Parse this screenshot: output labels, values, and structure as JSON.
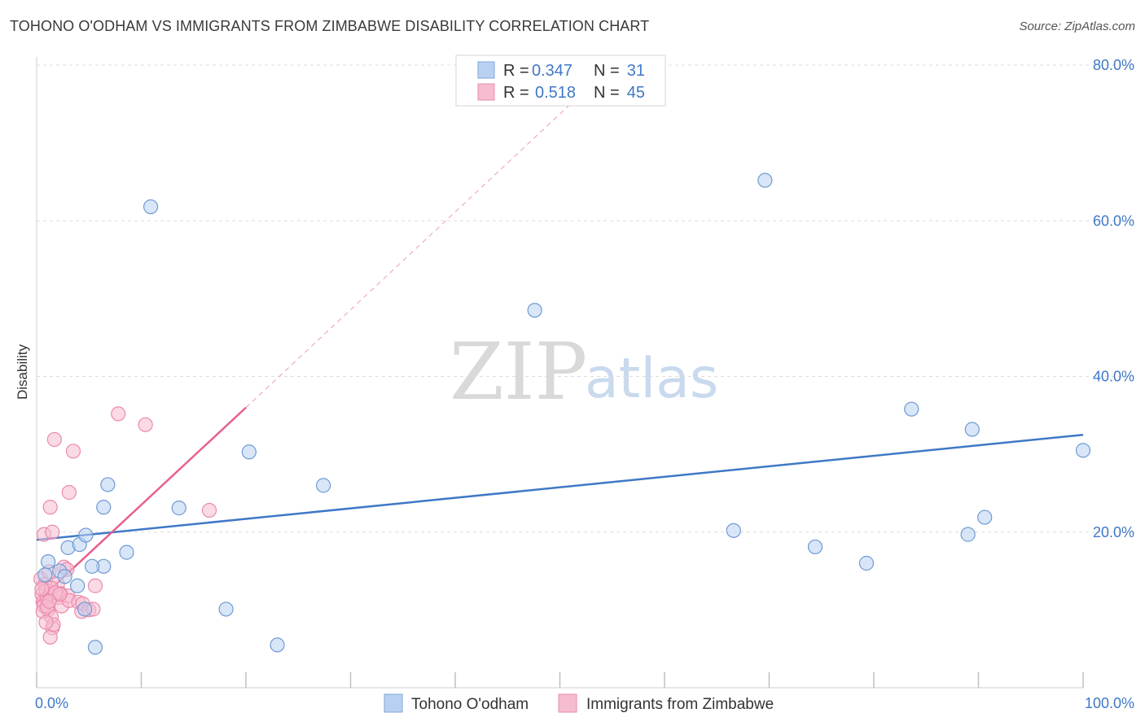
{
  "header": {
    "title": "TOHONO O'ODHAM VS IMMIGRANTS FROM ZIMBABWE DISABILITY CORRELATION CHART",
    "source": "Source: ZipAtlas.com"
  },
  "watermark": {
    "zip": "ZIP",
    "atlas": "atlas"
  },
  "colors": {
    "blue": "#3f78c7",
    "blue_fill": "#b9d1f0",
    "pink": "#e8608e",
    "pink_fill": "#f6bcd0",
    "grid": "#dddddd"
  },
  "legend": {
    "rows": [
      {
        "r_label": "R =",
        "r_value": "0.347",
        "n_label": "N =",
        "n_value": "31",
        "series": "blue"
      },
      {
        "r_label": "R =",
        "r_value": "0.518",
        "n_label": "N =",
        "n_value": "45",
        "series": "pink"
      }
    ]
  },
  "chart_data": {
    "type": "scatter",
    "title": "TOHONO O'ODHAM VS IMMIGRANTS FROM ZIMBABWE DISABILITY CORRELATION CHART",
    "xlabel": "",
    "ylabel": "Disability",
    "xlim": [
      0,
      100
    ],
    "ylim": [
      0,
      80
    ],
    "x_tick_labels": [
      "0.0%",
      "100.0%"
    ],
    "y_ticks": [
      20,
      40,
      60,
      80
    ],
    "y_tick_labels": [
      "20.0%",
      "40.0%",
      "60.0%",
      "80.0%"
    ],
    "legend_position": "top-center",
    "series": [
      {
        "name": "Tohono O'odham",
        "color": "#3f78c7",
        "points": [
          [
            1.1,
            16.2
          ],
          [
            0.8,
            14.5
          ],
          [
            2.2,
            15.0
          ],
          [
            2.7,
            14.3
          ],
          [
            3.9,
            13.1
          ],
          [
            4.6,
            10.1
          ],
          [
            3.0,
            18.0
          ],
          [
            4.1,
            18.4
          ],
          [
            4.7,
            19.6
          ],
          [
            6.4,
            15.6
          ],
          [
            5.3,
            15.6
          ],
          [
            5.6,
            5.2
          ],
          [
            6.4,
            23.2
          ],
          [
            6.8,
            26.1
          ],
          [
            8.6,
            17.4
          ],
          [
            10.9,
            61.8
          ],
          [
            13.6,
            23.1
          ],
          [
            18.1,
            10.1
          ],
          [
            20.3,
            30.3
          ],
          [
            23.0,
            5.5
          ],
          [
            27.4,
            26.0
          ],
          [
            47.6,
            48.5
          ],
          [
            66.6,
            20.2
          ],
          [
            69.6,
            65.2
          ],
          [
            74.4,
            18.1
          ],
          [
            79.3,
            16.0
          ],
          [
            83.6,
            35.8
          ],
          [
            89.0,
            19.7
          ],
          [
            89.4,
            33.2
          ],
          [
            90.6,
            21.9
          ],
          [
            100.0,
            30.5
          ]
        ],
        "trendline": {
          "x0": 0,
          "y0": 19.0,
          "x1": 100,
          "y1": 32.5
        }
      },
      {
        "name": "Immigrants from Zimbabwe",
        "color": "#e8608e",
        "points": [
          [
            0.4,
            14.0
          ],
          [
            0.5,
            12.0
          ],
          [
            0.6,
            11.0
          ],
          [
            0.7,
            10.5
          ],
          [
            0.8,
            13.3
          ],
          [
            0.9,
            12.5
          ],
          [
            1.0,
            11.5
          ],
          [
            1.1,
            10.0
          ],
          [
            1.2,
            14.9
          ],
          [
            1.3,
            12.0
          ],
          [
            1.4,
            9.1
          ],
          [
            1.5,
            7.7
          ],
          [
            1.3,
            6.5
          ],
          [
            1.6,
            8.1
          ],
          [
            0.7,
            19.7
          ],
          [
            1.3,
            23.2
          ],
          [
            1.5,
            20.0
          ],
          [
            1.7,
            31.9
          ],
          [
            2.0,
            13.3
          ],
          [
            2.1,
            11.6
          ],
          [
            2.3,
            12.1
          ],
          [
            2.4,
            10.5
          ],
          [
            2.6,
            15.5
          ],
          [
            2.9,
            15.2
          ],
          [
            3.0,
            11.8
          ],
          [
            3.1,
            11.2
          ],
          [
            3.1,
            25.1
          ],
          [
            3.5,
            30.4
          ],
          [
            4.0,
            11.0
          ],
          [
            4.3,
            9.8
          ],
          [
            4.4,
            10.8
          ],
          [
            5.0,
            10.0
          ],
          [
            5.4,
            10.1
          ],
          [
            5.6,
            13.1
          ],
          [
            7.8,
            35.2
          ],
          [
            10.4,
            33.8
          ],
          [
            16.5,
            22.8
          ],
          [
            0.6,
            9.8
          ],
          [
            1.0,
            10.4
          ],
          [
            1.4,
            12.8
          ],
          [
            1.8,
            12.2
          ],
          [
            0.9,
            8.4
          ],
          [
            2.2,
            12.0
          ],
          [
            0.5,
            12.7
          ],
          [
            1.2,
            11.1
          ]
        ],
        "trendline": {
          "x0": 0,
          "y0": 11.0,
          "x1": 20,
          "y1": 36.0,
          "dashed_to": {
            "x": 55,
            "y": 80
          }
        }
      }
    ]
  },
  "bottom_legend": {
    "items": [
      {
        "label": "Tohono O'odham",
        "series": "blue"
      },
      {
        "label": "Immigrants from Zimbabwe",
        "series": "pink"
      }
    ]
  }
}
